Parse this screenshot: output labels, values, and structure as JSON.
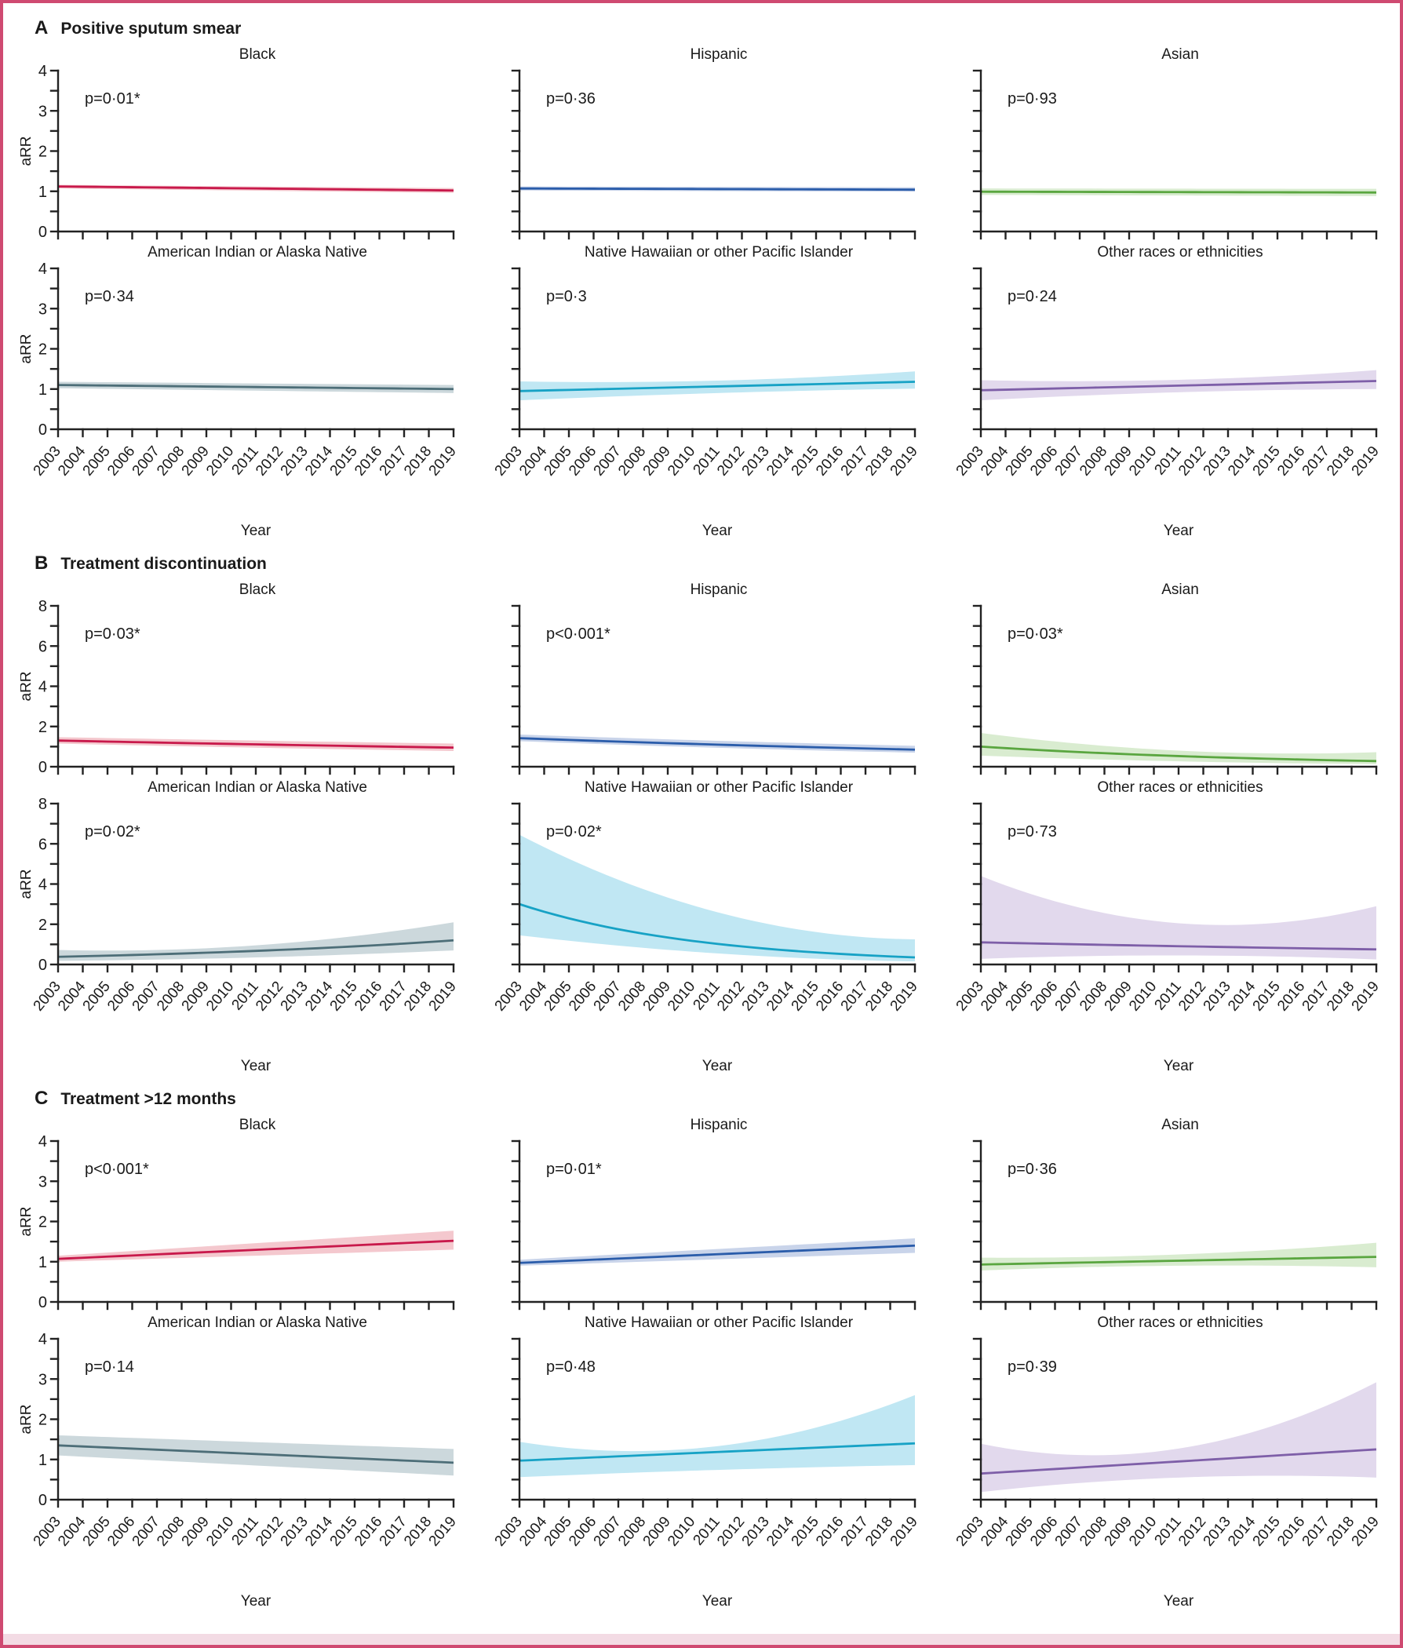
{
  "figure": {
    "frame_color": "#cf4a71",
    "axis_color": "#222222",
    "xlabel": "Year",
    "ylabel": "aRR"
  },
  "chart_data": {
    "type": "line",
    "x": [
      2003,
      2004,
      2005,
      2006,
      2007,
      2008,
      2009,
      2010,
      2011,
      2012,
      2013,
      2014,
      2015,
      2016,
      2017,
      2018,
      2019
    ],
    "xlabel": "Year",
    "ylabel": "aRR",
    "legend": "none",
    "grid": false,
    "note": "Each panel shows a modeled aRR trend line with shaded 95% CI band; line values given at 2003 and 2019, band bounds at 2003 / midpoint / 2019.",
    "sections": [
      {
        "letter": "A",
        "title": "Positive sputum smear",
        "ylim": [
          0,
          4
        ],
        "yticks_major": [
          0,
          1,
          2,
          3,
          4
        ],
        "yticks_minor": [
          0.5,
          1.5,
          2.5,
          3.5
        ],
        "panels": [
          {
            "title": "Black",
            "p": "p=0·01*",
            "color": "#c8194b",
            "band_color": "#f4c8ce",
            "shape": "linear",
            "line": [
              1.12,
              1.02
            ],
            "lower": [
              1.07,
              null,
              0.96
            ],
            "upper": [
              1.16,
              null,
              1.08
            ]
          },
          {
            "title": "Hispanic",
            "p": "p=0·36",
            "color": "#2a5caa",
            "band_color": "#c9d4ea",
            "shape": "linear",
            "line": [
              1.07,
              1.04
            ],
            "lower": [
              1.02,
              null,
              0.99
            ],
            "upper": [
              1.12,
              null,
              1.1
            ]
          },
          {
            "title": "Asian",
            "p": "p=0·93",
            "color": "#5aa640",
            "band_color": "#d9ecd0",
            "shape": "linear",
            "line": [
              0.99,
              0.97
            ],
            "lower": [
              0.91,
              null,
              0.88
            ],
            "upper": [
              1.07,
              null,
              1.06
            ]
          },
          {
            "title": "American Indian or Alaska Native",
            "p": "p=0·34",
            "color": "#4d6e78",
            "band_color": "#ccd8dc",
            "shape": "linear",
            "line": [
              1.1,
              1.0
            ],
            "lower": [
              1.02,
              null,
              0.9
            ],
            "upper": [
              1.18,
              null,
              1.1
            ]
          },
          {
            "title": "Native Hawaiian or other Pacific Islander",
            "p": "p=0·3",
            "color": "#17a2c5",
            "band_color": "#c0e7f3",
            "shape": "linear",
            "line": [
              0.95,
              1.18
            ],
            "lower": [
              0.72,
              0.9,
              1.01
            ],
            "upper": [
              1.19,
              1.21,
              1.44
            ]
          },
          {
            "title": "Other races or ethnicities",
            "p": "p=0·24",
            "color": "#7e5fa8",
            "band_color": "#e2d9ed",
            "shape": "linear",
            "line": [
              0.97,
              1.2
            ],
            "lower": [
              0.72,
              0.92,
              1.0
            ],
            "upper": [
              1.22,
              1.23,
              1.47
            ]
          }
        ]
      },
      {
        "letter": "B",
        "title": "Treatment discontinuation",
        "ylim": [
          0,
          8
        ],
        "yticks_major": [
          0,
          2,
          4,
          6,
          8
        ],
        "yticks_minor": [
          1,
          3,
          5,
          7
        ],
        "panels": [
          {
            "title": "Black",
            "p": "p=0·03*",
            "color": "#c8194b",
            "band_color": "#f4c8ce",
            "shape": "exp",
            "line": [
              1.3,
              0.95
            ],
            "lower": [
              1.15,
              null,
              0.78
            ],
            "upper": [
              1.47,
              null,
              1.15
            ]
          },
          {
            "title": "Hispanic",
            "p": "p<0·001*",
            "color": "#2a5caa",
            "band_color": "#c9d4ea",
            "shape": "exp",
            "line": [
              1.42,
              0.85
            ],
            "lower": [
              1.27,
              null,
              0.7
            ],
            "upper": [
              1.6,
              null,
              1.04
            ]
          },
          {
            "title": "Asian",
            "p": "p=0·03*",
            "color": "#5aa640",
            "band_color": "#d9ecd0",
            "shape": "exp",
            "line": [
              1.0,
              0.28
            ],
            "lower": [
              0.55,
              null,
              0.13
            ],
            "upper": [
              1.68,
              0.8,
              0.72
            ]
          },
          {
            "title": "American Indian or Alaska Native",
            "p": "p=0·02*",
            "color": "#4d6e78",
            "band_color": "#ccd8dc",
            "shape": "exp",
            "line": [
              0.38,
              1.2
            ],
            "lower": [
              0.18,
              0.35,
              0.7
            ],
            "upper": [
              0.72,
              0.95,
              2.1
            ]
          },
          {
            "title": "Native Hawaiian or other Pacific Islander",
            "p": "p=0·02*",
            "color": "#17a2c5",
            "band_color": "#c0e7f3",
            "shape": "exp",
            "line": [
              3.0,
              0.35
            ],
            "lower": [
              1.45,
              0.55,
              0.15
            ],
            "upper": [
              6.45,
              2.6,
              1.25
            ]
          },
          {
            "title": "Other races or ethnicities",
            "p": "p=0·73",
            "color": "#7e5fa8",
            "band_color": "#e2d9ed",
            "shape": "exp",
            "line": [
              1.1,
              0.75
            ],
            "lower": [
              0.28,
              0.45,
              0.25
            ],
            "upper": [
              4.4,
              2.05,
              2.9
            ]
          }
        ]
      },
      {
        "letter": "C",
        "title": "Treatment >12 months",
        "ylim": [
          0,
          4
        ],
        "yticks_major": [
          0,
          1,
          2,
          3,
          4
        ],
        "yticks_minor": [
          0.5,
          1.5,
          2.5,
          3.5
        ],
        "panels": [
          {
            "title": "Black",
            "p": "p<0·001*",
            "color": "#c8194b",
            "band_color": "#f4c8ce",
            "shape": "linear",
            "line": [
              1.07,
              1.52
            ],
            "lower": [
              1.0,
              null,
              1.3
            ],
            "upper": [
              1.15,
              null,
              1.77
            ]
          },
          {
            "title": "Hispanic",
            "p": "p=0·01*",
            "color": "#2a5caa",
            "band_color": "#c9d4ea",
            "shape": "linear",
            "line": [
              0.97,
              1.4
            ],
            "lower": [
              0.9,
              null,
              1.22
            ],
            "upper": [
              1.05,
              null,
              1.58
            ]
          },
          {
            "title": "Asian",
            "p": "p=0·36",
            "color": "#5aa640",
            "band_color": "#d9ecd0",
            "shape": "linear",
            "line": [
              0.93,
              1.12
            ],
            "lower": [
              0.78,
              0.9,
              0.86
            ],
            "upper": [
              1.1,
              1.18,
              1.47
            ]
          },
          {
            "title": "American Indian or Alaska Native",
            "p": "p=0·14",
            "color": "#4d6e78",
            "band_color": "#ccd8dc",
            "shape": "linear",
            "line": [
              1.35,
              0.92
            ],
            "lower": [
              1.1,
              null,
              0.6
            ],
            "upper": [
              1.6,
              null,
              1.26
            ]
          },
          {
            "title": "Native Hawaiian or other Pacific Islander",
            "p": "p=0·48",
            "color": "#17a2c5",
            "band_color": "#c0e7f3",
            "shape": "linear",
            "line": [
              0.97,
              1.4
            ],
            "lower": [
              0.56,
              0.74,
              0.86
            ],
            "upper": [
              1.44,
              1.33,
              2.6
            ]
          },
          {
            "title": "Other races or ethnicities",
            "p": "p=0·39",
            "color": "#7e5fa8",
            "band_color": "#e2d9ed",
            "shape": "linear",
            "line": [
              0.65,
              1.25
            ],
            "lower": [
              0.19,
              0.55,
              0.55
            ],
            "upper": [
              1.39,
              1.27,
              2.92
            ]
          }
        ]
      }
    ]
  }
}
